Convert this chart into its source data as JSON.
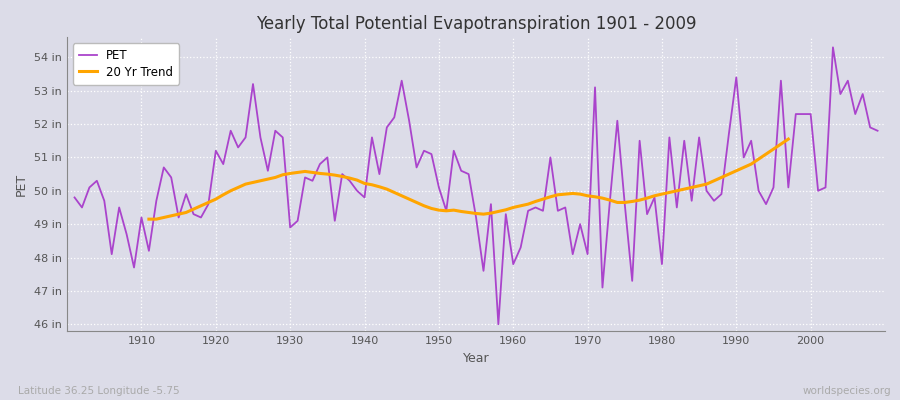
{
  "title": "Yearly Total Potential Evapotranspiration 1901 - 2009",
  "xlabel": "Year",
  "ylabel": "PET",
  "subtitle_left": "Latitude 36.25 Longitude -5.75",
  "subtitle_right": "worldspecies.org",
  "pet_color": "#aa44cc",
  "trend_color": "#FFA500",
  "bg_color": "#dcdce8",
  "plot_bg_color": "#dcdce8",
  "ylim": [
    45.8,
    54.6
  ],
  "yticks": [
    46,
    47,
    48,
    49,
    50,
    51,
    52,
    53,
    54
  ],
  "ytick_labels": [
    "46 in",
    "47 in",
    "48 in",
    "49 in",
    "50 in",
    "51 in",
    "52 in",
    "53 in",
    "54 in"
  ],
  "xlim": [
    1900,
    2010
  ],
  "xticks": [
    1910,
    1920,
    1930,
    1940,
    1950,
    1960,
    1970,
    1980,
    1990,
    2000
  ],
  "years": [
    1901,
    1902,
    1903,
    1904,
    1905,
    1906,
    1907,
    1908,
    1909,
    1910,
    1911,
    1912,
    1913,
    1914,
    1915,
    1916,
    1917,
    1918,
    1919,
    1920,
    1921,
    1922,
    1923,
    1924,
    1925,
    1926,
    1927,
    1928,
    1929,
    1930,
    1931,
    1932,
    1933,
    1934,
    1935,
    1936,
    1937,
    1938,
    1939,
    1940,
    1941,
    1942,
    1943,
    1944,
    1945,
    1946,
    1947,
    1948,
    1949,
    1950,
    1951,
    1952,
    1953,
    1954,
    1955,
    1956,
    1957,
    1958,
    1959,
    1960,
    1961,
    1962,
    1963,
    1964,
    1965,
    1966,
    1967,
    1968,
    1969,
    1970,
    1971,
    1972,
    1973,
    1974,
    1975,
    1976,
    1977,
    1978,
    1979,
    1980,
    1981,
    1982,
    1983,
    1984,
    1985,
    1986,
    1987,
    1988,
    1989,
    1990,
    1991,
    1992,
    1993,
    1994,
    1995,
    1996,
    1997,
    1998,
    1999,
    2000,
    2001,
    2002,
    2003,
    2004,
    2005,
    2006,
    2007,
    2008,
    2009
  ],
  "pet": [
    49.8,
    49.5,
    50.1,
    50.3,
    49.7,
    48.1,
    49.5,
    48.7,
    47.7,
    49.2,
    48.2,
    49.7,
    50.7,
    50.4,
    49.2,
    49.9,
    49.3,
    49.2,
    49.6,
    51.2,
    50.8,
    51.8,
    51.3,
    51.6,
    53.2,
    51.6,
    50.6,
    51.8,
    51.6,
    48.9,
    49.1,
    50.4,
    50.3,
    50.8,
    51.0,
    49.1,
    50.5,
    50.3,
    50.0,
    49.8,
    51.6,
    50.5,
    51.9,
    52.2,
    53.3,
    52.1,
    50.7,
    51.2,
    51.1,
    50.1,
    49.4,
    51.2,
    50.6,
    50.5,
    49.2,
    47.6,
    49.6,
    46.0,
    49.3,
    47.8,
    48.3,
    49.4,
    49.5,
    49.4,
    51.0,
    49.4,
    49.5,
    48.1,
    49.0,
    48.1,
    53.1,
    47.1,
    49.7,
    52.1,
    49.6,
    47.3,
    51.5,
    49.3,
    49.8,
    47.8,
    51.6,
    49.5,
    51.5,
    49.7,
    51.6,
    50.0,
    49.7,
    49.9,
    51.7,
    53.4,
    51.0,
    51.5,
    50.0,
    49.6,
    50.1,
    53.3,
    50.1,
    52.3,
    52.3,
    52.3,
    50.0,
    50.1,
    54.3,
    52.9,
    53.3,
    52.3,
    52.9,
    51.9,
    51.8
  ],
  "trend_start_year": 1911,
  "trend": [
    49.15,
    49.15,
    49.2,
    49.25,
    49.3,
    49.35,
    49.45,
    49.55,
    49.65,
    49.75,
    49.88,
    50.0,
    50.1,
    50.2,
    50.25,
    50.3,
    50.35,
    50.4,
    50.48,
    50.52,
    50.55,
    50.58,
    50.55,
    50.52,
    50.5,
    50.47,
    50.43,
    50.38,
    50.32,
    50.22,
    50.18,
    50.12,
    50.05,
    49.95,
    49.85,
    49.75,
    49.65,
    49.55,
    49.47,
    49.42,
    49.4,
    49.42,
    49.38,
    49.35,
    49.32,
    49.3,
    49.33,
    49.38,
    49.43,
    49.5,
    49.55,
    49.6,
    49.68,
    49.75,
    49.82,
    49.88,
    49.9,
    49.92,
    49.9,
    49.85,
    49.82,
    49.78,
    49.72,
    49.65,
    49.65,
    49.68,
    49.72,
    49.78,
    49.85,
    49.9,
    49.95,
    50.0,
    50.05,
    50.1,
    50.15,
    50.2,
    50.3,
    50.4,
    50.5,
    50.6,
    50.7,
    50.8,
    50.95,
    51.1,
    51.25,
    51.4,
    51.55
  ]
}
